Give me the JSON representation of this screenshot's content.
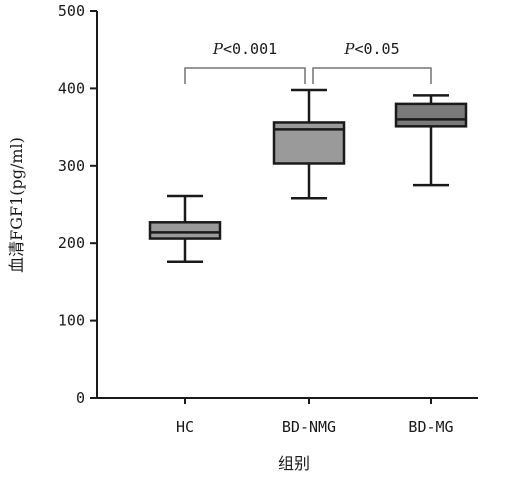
{
  "chart_data": {
    "type": "box",
    "categories": [
      "HC",
      "BD-NMG",
      "BD-MG"
    ],
    "boxes": [
      {
        "category": "HC",
        "whisker_low": 176,
        "q1": 206,
        "median": 214,
        "q3": 227,
        "whisker_high": 261,
        "color": "#9a9a9a"
      },
      {
        "category": "BD-NMG",
        "whisker_low": 258,
        "q1": 303,
        "median": 347,
        "q3": 356,
        "whisker_high": 398,
        "color": "#9a9a9a"
      },
      {
        "category": "BD-MG",
        "whisker_low": 275,
        "q1": 351,
        "median": 360,
        "q3": 380,
        "whisker_high": 391,
        "color": "#7a7a7a"
      }
    ],
    "xlabel": "组别",
    "ylabel": "血清FGF1(pg/ml)",
    "ylim": [
      0,
      500
    ],
    "yticks": [
      0,
      100,
      200,
      300,
      400,
      500
    ],
    "grid": false,
    "annotations": [
      {
        "from": "HC",
        "to": "BD-NMG",
        "p_symbol": "P",
        "text": "<0.001"
      },
      {
        "from": "BD-NMG",
        "to": "BD-MG",
        "p_symbol": "P",
        "text": "<0.05"
      }
    ],
    "line_color": "#1a1a1a",
    "bracket_color": "#8a8a8a"
  }
}
